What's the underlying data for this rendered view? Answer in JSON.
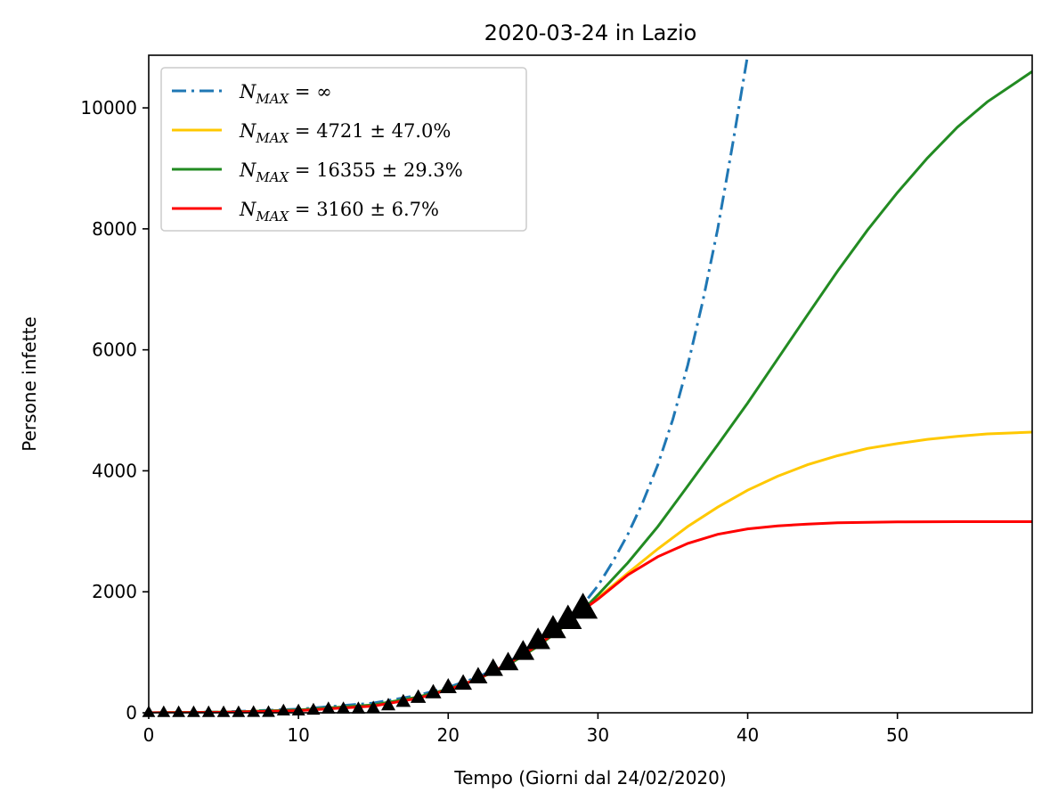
{
  "chart_data": {
    "type": "line",
    "title": "2020-03-24 in Lazio",
    "xlabel": "Tempo (Giorni dal 24/02/2020)",
    "ylabel": "Persone infette",
    "xlim": [
      0,
      59
    ],
    "ylim": [
      0,
      10870
    ],
    "x_ticks": [
      0,
      10,
      20,
      30,
      40,
      50
    ],
    "y_ticks": [
      0,
      2000,
      4000,
      6000,
      8000,
      10000
    ],
    "grid": false,
    "legend_position": "top-left",
    "series": [
      {
        "name": "N_MAX = ∞",
        "legend_main": "N",
        "legend_sub": "MAX",
        "legend_rest": " = ∞",
        "color": "#1f77b4",
        "style": "dashdot",
        "x": [
          0,
          5,
          10,
          15,
          18,
          20,
          22,
          24,
          26,
          28,
          29,
          30,
          31,
          32,
          33,
          34,
          35,
          36,
          37,
          38,
          39,
          40
        ],
        "y": [
          0,
          15,
          60,
          160,
          290,
          420,
          590,
          830,
          1170,
          1560,
          1790,
          2100,
          2500,
          2950,
          3480,
          4100,
          4850,
          5750,
          6800,
          8000,
          9400,
          10870
        ]
      },
      {
        "name": "N_MAX = 4721 ± 47.0%",
        "legend_main": "N",
        "legend_sub": "MAX",
        "legend_rest": " = 4721 ± 47.0%",
        "color": "#ffc800",
        "style": "solid",
        "x": [
          0,
          5,
          10,
          15,
          18,
          20,
          22,
          24,
          26,
          28,
          29,
          30,
          32,
          34,
          36,
          38,
          40,
          42,
          44,
          46,
          48,
          50,
          52,
          54,
          56,
          59
        ],
        "y": [
          0,
          10,
          45,
          130,
          260,
          390,
          560,
          790,
          1100,
          1480,
          1700,
          1900,
          2310,
          2710,
          3080,
          3400,
          3680,
          3910,
          4100,
          4250,
          4370,
          4450,
          4520,
          4570,
          4610,
          4640
        ]
      },
      {
        "name": "N_MAX = 16355 ± 29.3%",
        "legend_main": "N",
        "legend_sub": "MAX",
        "legend_rest": " = 16355 ± 29.3%",
        "color": "#228b22",
        "style": "solid",
        "x": [
          0,
          5,
          10,
          15,
          18,
          20,
          22,
          24,
          26,
          28,
          29,
          30,
          32,
          34,
          36,
          38,
          40,
          42,
          44,
          46,
          48,
          50,
          52,
          54,
          56,
          59
        ],
        "y": [
          0,
          10,
          45,
          130,
          260,
          390,
          560,
          790,
          1100,
          1480,
          1700,
          1950,
          2480,
          3080,
          3750,
          4430,
          5120,
          5850,
          6580,
          7300,
          7980,
          8600,
          9170,
          9680,
          10100,
          10600
        ]
      },
      {
        "name": "N_MAX = 3160 ± 6.7%",
        "legend_main": "N",
        "legend_sub": "MAX",
        "legend_rest": " = 3160 ± 6.7%",
        "color": "#ff0000",
        "style": "solid",
        "x": [
          0,
          5,
          10,
          15,
          18,
          20,
          22,
          24,
          26,
          28,
          29,
          30,
          31,
          32,
          34,
          36,
          38,
          40,
          42,
          44,
          46,
          50,
          54,
          59
        ],
        "y": [
          0,
          8,
          35,
          110,
          240,
          380,
          560,
          810,
          1120,
          1490,
          1700,
          1880,
          2080,
          2280,
          2580,
          2800,
          2950,
          3040,
          3090,
          3120,
          3140,
          3155,
          3160,
          3160
        ]
      }
    ],
    "observed": {
      "marker": "triangle",
      "color": "#000000",
      "x": [
        0,
        1,
        2,
        3,
        4,
        5,
        6,
        7,
        8,
        9,
        10,
        11,
        12,
        13,
        14,
        15,
        16,
        17,
        18,
        19,
        20,
        21,
        22,
        23,
        24,
        25,
        26,
        27,
        28,
        29
      ],
      "y": [
        3,
        3,
        3,
        3,
        3,
        3,
        3,
        6,
        6,
        30,
        30,
        44,
        64,
        64,
        64,
        76,
        120,
        180,
        250,
        330,
        420,
        480,
        590,
        720,
        820,
        1000,
        1190,
        1380,
        1540,
        1720
      ]
    }
  }
}
